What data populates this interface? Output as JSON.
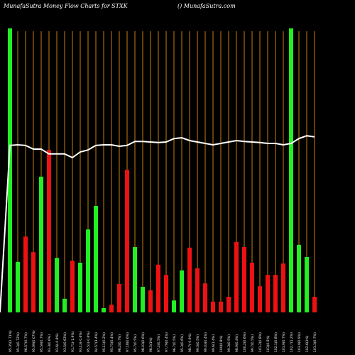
{
  "header": {
    "title": "MunafaSutra  Money  Flow  Charts for STXK",
    "site": "() MunafaSutra.com"
  },
  "colors": {
    "up": "#22ee22",
    "down": "#ee1111",
    "grid": "#c87f0a",
    "line": "#ffffff",
    "background": "#000000"
  },
  "chart_data": {
    "type": "bar",
    "ylim": [
      0,
      100
    ],
    "grid": true,
    "series": [
      {
        "values": [
          100,
          17.8,
          26.7,
          21.2,
          47.8,
          57.2,
          19.2,
          4.8,
          18.2,
          17.5,
          29.2,
          37.5,
          1.5,
          2.7,
          10,
          50.2,
          23,
          9,
          7.8,
          16.8,
          13.2,
          4.2,
          14.8,
          22.8,
          15.5,
          10.2,
          3.8,
          3.8,
          5.5,
          24.8,
          23,
          17.5,
          9.2,
          13.2,
          13.2,
          17.2,
          100,
          23.8,
          19.5,
          5.5
        ]
      },
      {
        "values": [
          58.8,
          59,
          58.8,
          57.5,
          57.5,
          55.8,
          55.8,
          55.8,
          54.5,
          56.5,
          57.2,
          58.8,
          59,
          59,
          58.5,
          58.8,
          60.2,
          60.2,
          60,
          59.8,
          60,
          61.2,
          61.5,
          60.5,
          60,
          59.5,
          59,
          59.5,
          60,
          60.5,
          60.2,
          60,
          59.8,
          59.5,
          59.5,
          59,
          59.5,
          61.2,
          62.2,
          61.8
        ]
      }
    ],
    "colors": [
      "G",
      "G",
      "R",
      "R",
      "G",
      "R",
      "G",
      "G",
      "R",
      "G",
      "G",
      "G",
      "G",
      "R",
      "R",
      "R",
      "G",
      "G",
      "R",
      "R",
      "R",
      "G",
      "G",
      "R",
      "R",
      "R",
      "R",
      "R",
      "R",
      "R",
      "R",
      "R",
      "R",
      "R",
      "R",
      "R",
      "G",
      "G",
      "G",
      "R"
    ],
    "tick_labels": [
      "95.35(1.71%)",
      "95.3(0.72%)",
      "96.57(0.7%)",
      "95.99(0.07%)",
      "95.59(0.7%)",
      "93.3(0.6%)",
      "93.6(-0.8%)",
      "93.5(0.63%)",
      "91.71(-1.9%)",
      "93.13(-0.6%)",
      "95.51(-0.6%)",
      "94.57(3.4%)",
      "95.11(0.2%)",
      "95.75(0.4%)",
      "96.2(0.7%)",
      "97.18(0.6%)",
      "95.7(0.5%)",
      "98.03(0.6%)",
      "98.5(1%)",
      "97.2(0.5%)",
      "97.79(0.4%)",
      "96.7(0.5%)",
      "95.3(0.6%)",
      "98.7(-0.9%)",
      "99.3(0.5%)",
      "99.03(0.4%)",
      "99.6(1.4%)",
      "100(0.8%)",
      "99.3(0.5%)",
      "98.9(0.4%)",
      "100.2(0.6%)",
      "99.7(0.5%)",
      "101.2(0.8%)",
      "101(0.5%)",
      "102.1(0.8%)",
      "101.9(0.7%)",
      "102.7(1.2%)",
      "103.9(0.9%)",
      "102.6(1%)",
      "101.3(0.7%)"
    ]
  }
}
